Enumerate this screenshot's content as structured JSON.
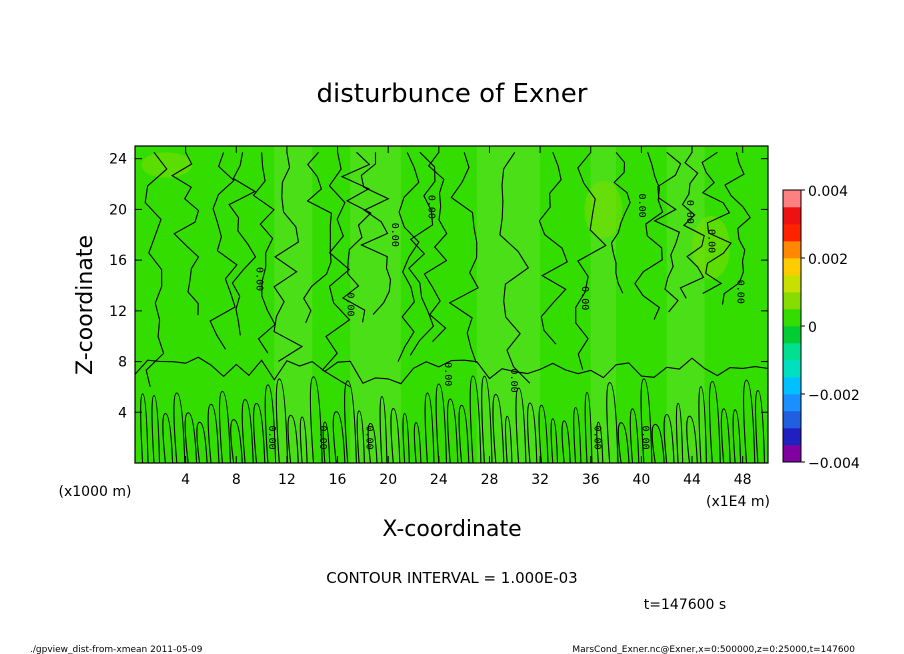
{
  "chart_data": {
    "type": "heatmap",
    "title": "disturbunce of Exner",
    "xlabel": "X-coordinate",
    "ylabel": "Z-coordinate",
    "x_unit": "(x1E4 m)",
    "y_unit": "(x1000 m)",
    "x_ticks": [
      "4",
      "8",
      "12",
      "16",
      "20",
      "24",
      "28",
      "32",
      "36",
      "40",
      "44",
      "48"
    ],
    "y_ticks": [
      "4",
      "8",
      "12",
      "16",
      "20",
      "24"
    ],
    "xlim": [
      0,
      50
    ],
    "ylim": [
      0,
      25
    ],
    "colorbar": {
      "ticks": [
        "0.004",
        "0.002",
        "0",
        "−0.002",
        "−0.004"
      ],
      "range": [
        -0.004,
        0.004
      ],
      "colors": [
        "#8000a0",
        "#2020c0",
        "#2060e0",
        "#1a90ff",
        "#00c0ff",
        "#00e0c0",
        "#00e090",
        "#00cc33",
        "#33dd00",
        "#88dd00",
        "#c8e000",
        "#ffcc00",
        "#ff8800",
        "#ff2200",
        "#ee1111",
        "#ff8080"
      ]
    },
    "contour_interval": "CONTOUR INTERVAL = 1.000E-03",
    "contour_labels": [
      "0.00",
      "0.00",
      "0.00",
      "0.00",
      "0.00",
      "0.00",
      "0.00",
      "0.00",
      "0.00",
      "0.00",
      "0.00",
      "0.00",
      "0.00",
      "0.00",
      "0.00",
      "0.00"
    ],
    "time_label": "t=147600 s",
    "field_colors": {
      "background": "#33dd00",
      "light_band": "#55e022",
      "positive_patch": "#7cdc00"
    }
  },
  "footer": {
    "left": "./gpview_dist-from-xmean  2011-05-09",
    "right": "MarsCond_Exner.nc@Exner,x=0:500000,z=0:25000,t=147600"
  }
}
